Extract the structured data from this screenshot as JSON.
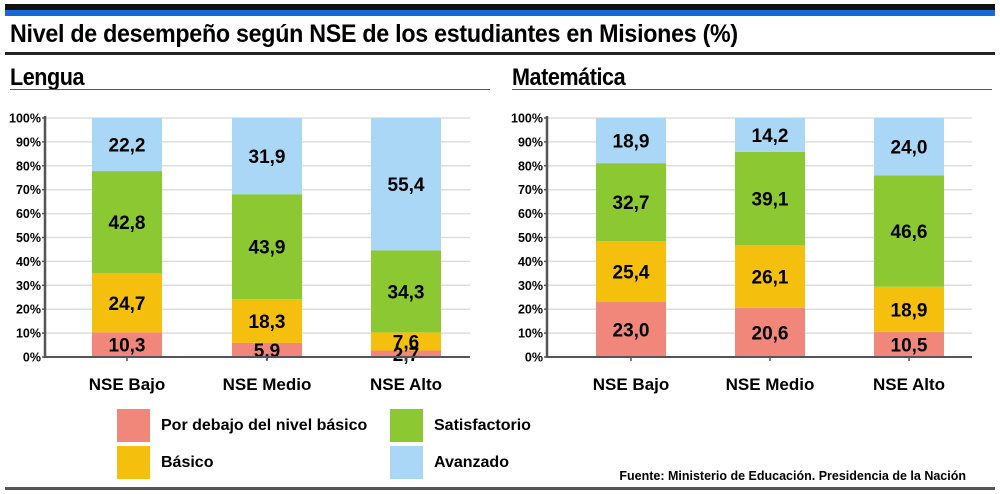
{
  "title": "Nivel de desempeño según NSE de los estudiantes en Misiones (%)",
  "colors": {
    "top_bar": "#1767d9",
    "Por debajo del nivel básico": "#f0877a",
    "Básico": "#f5bf0e",
    "Satisfactorio": "#8cc832",
    "Avanzado": "#a9d7f5",
    "grid": "#dddddd",
    "axis": "#555555"
  },
  "legend": [
    {
      "label": "Por debajo del nivel básico",
      "color": "#f0877a"
    },
    {
      "label": "Satisfactorio",
      "color": "#8cc832"
    },
    {
      "label": "Básico",
      "color": "#f5bf0e"
    },
    {
      "label": "Avanzado",
      "color": "#a9d7f5"
    }
  ],
  "source": "Fuente: Ministerio de Educación. Presidencia de la Nación",
  "chart_data": [
    {
      "type": "bar",
      "stacked": true,
      "title": "Lengua",
      "categories": [
        "NSE Bajo",
        "NSE Medio",
        "NSE Alto"
      ],
      "series": [
        {
          "name": "Por debajo del nivel básico",
          "values": [
            10.3,
            5.9,
            2.7
          ],
          "labels": [
            "10,3",
            "5,9",
            "2,7"
          ]
        },
        {
          "name": "Básico",
          "values": [
            24.7,
            18.3,
            7.6
          ],
          "labels": [
            "24,7",
            "18,3",
            "7,6"
          ]
        },
        {
          "name": "Satisfactorio",
          "values": [
            42.8,
            43.9,
            34.3
          ],
          "labels": [
            "42,8",
            "43,9",
            "34,3"
          ]
        },
        {
          "name": "Avanzado",
          "values": [
            22.2,
            31.9,
            55.4
          ],
          "labels": [
            "22,2",
            "31,9",
            "55,4"
          ]
        }
      ],
      "yticks": [
        "0%",
        "10%",
        "20%",
        "30%",
        "40%",
        "50%",
        "60%",
        "70%",
        "80%",
        "90%",
        "100%"
      ],
      "ylim": [
        0,
        100
      ],
      "grid": true,
      "xlabel": "",
      "ylabel": ""
    },
    {
      "type": "bar",
      "stacked": true,
      "title": "Matemática",
      "categories": [
        "NSE Bajo",
        "NSE Medio",
        "NSE Alto"
      ],
      "series": [
        {
          "name": "Por debajo del nivel básico",
          "values": [
            23.0,
            20.6,
            10.5
          ],
          "labels": [
            "23,0",
            "20,6",
            "10,5"
          ]
        },
        {
          "name": "Básico",
          "values": [
            25.4,
            26.1,
            18.9
          ],
          "labels": [
            "25,4",
            "26,1",
            "18,9"
          ]
        },
        {
          "name": "Satisfactorio",
          "values": [
            32.7,
            39.1,
            46.6
          ],
          "labels": [
            "32,7",
            "39,1",
            "46,6"
          ]
        },
        {
          "name": "Avanzado",
          "values": [
            18.9,
            14.2,
            24.0
          ],
          "labels": [
            "18,9",
            "14,2",
            "24,0"
          ]
        }
      ],
      "yticks": [
        "0%",
        "10%",
        "20%",
        "30%",
        "40%",
        "50%",
        "60%",
        "70%",
        "80%",
        "90%",
        "100%"
      ],
      "ylim": [
        0,
        100
      ],
      "grid": true,
      "xlabel": "",
      "ylabel": ""
    }
  ]
}
